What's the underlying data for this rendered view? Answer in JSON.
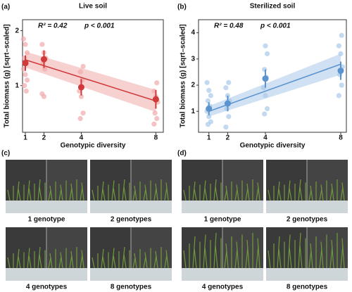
{
  "chart_data": [
    {
      "type": "scatter",
      "panel_label": "(a)",
      "title": "Live soil",
      "xlabel": "Genotypic diversity",
      "ylabel": "Total biomass (g) [sqrt–scaled]",
      "r2_label": "R² = 0.42",
      "p_label": "p < 0.001",
      "xlim": [
        0.85,
        8.4
      ],
      "ylim": [
        0.15,
        2.2
      ],
      "xticks": [
        1,
        2,
        4,
        8
      ],
      "yticks": [
        1,
        2
      ],
      "color": "#d03a3a",
      "light_color": "#f1a9a9",
      "x": [
        1,
        2,
        4,
        8
      ],
      "means": [
        1.41,
        1.48,
        0.97,
        0.75
      ],
      "errors": [
        0.14,
        0.16,
        0.15,
        0.17
      ],
      "fit": {
        "x": [
          1,
          8
        ],
        "y": [
          1.47,
          0.72
        ],
        "lower": [
          1.33,
          0.52
        ],
        "upper": [
          1.62,
          0.92
        ]
      },
      "raw": {
        "x": [
          1,
          1,
          1,
          1,
          1,
          1,
          1,
          1,
          1,
          1,
          2,
          2,
          2,
          2,
          2,
          2,
          2,
          4,
          4,
          4,
          4,
          4,
          4,
          4,
          8,
          8,
          8,
          8,
          8,
          8,
          8
        ],
        "y": [
          1.85,
          1.75,
          1.6,
          1.5,
          1.4,
          1.3,
          1.2,
          1.1,
          1.0,
          0.9,
          1.75,
          1.6,
          1.5,
          1.4,
          1.3,
          0.85,
          0.8,
          1.35,
          1.25,
          1.1,
          0.9,
          0.8,
          0.5,
          0.4,
          1.05,
          0.9,
          0.8,
          0.7,
          0.5,
          0.4,
          0.3
        ]
      }
    },
    {
      "type": "scatter",
      "panel_label": "(b)",
      "title": "Sterilized soil",
      "xlabel": "Genotypic diversity",
      "ylabel": "Total biomass (g) [sqrt–scaled]",
      "r2_label": "R² = 0.48",
      "p_label": "p < 0.001",
      "xlim": [
        0.45,
        8.3
      ],
      "ylim": [
        0.2,
        4.5
      ],
      "xticks": [
        1,
        2,
        4,
        8
      ],
      "yticks": [
        1,
        2,
        3,
        4
      ],
      "color": "#5b93cf",
      "light_color": "#aac9ea",
      "x": [
        1,
        2,
        4,
        8
      ],
      "means": [
        1.1,
        1.3,
        2.25,
        2.55
      ],
      "errors": [
        0.25,
        0.3,
        0.35,
        0.35
      ],
      "fit": {
        "x": [
          1,
          8
        ],
        "y": [
          1.0,
          2.8
        ],
        "lower": [
          0.8,
          2.4
        ],
        "upper": [
          1.2,
          3.2
        ]
      },
      "raw": {
        "x": [
          1,
          1,
          1,
          1,
          1,
          1,
          1,
          1,
          1,
          2,
          2,
          2,
          2,
          2,
          2,
          2,
          4,
          4,
          4,
          4,
          4,
          4,
          4,
          4,
          8,
          8,
          8,
          8,
          8,
          8,
          8
        ],
        "y": [
          2.1,
          1.8,
          1.6,
          1.4,
          1.2,
          1.0,
          0.8,
          0.6,
          0.5,
          2.1,
          1.9,
          1.6,
          1.4,
          1.1,
          0.8,
          0.4,
          3.5,
          3.2,
          2.6,
          2.3,
          1.9,
          1.6,
          1.1,
          0.9,
          3.9,
          3.5,
          3.2,
          2.7,
          2.4,
          2.0,
          1.6
        ]
      }
    }
  ],
  "photo_panels": [
    {
      "label": "(c)",
      "captions": [
        "1 genotype",
        "2 genotypes",
        "4 genotypes",
        "8 genotypes"
      ]
    },
    {
      "label": "(d)",
      "captions": [
        "1 genotype",
        "2 genotypes",
        "4 genotypes",
        "8 genotypes"
      ]
    }
  ]
}
